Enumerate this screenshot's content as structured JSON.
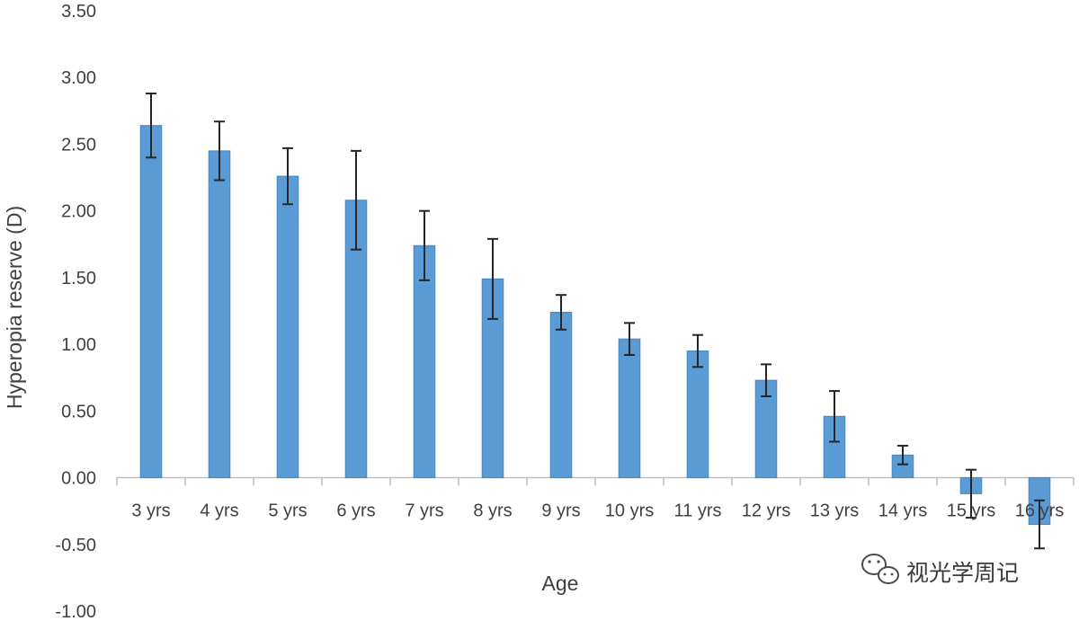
{
  "chart_data": {
    "type": "bar",
    "title": "",
    "xlabel": "Age",
    "ylabel": "Hyperopia reserve (D)",
    "ylim": [
      -1.0,
      3.5
    ],
    "yticks": [
      "3.50",
      "3.00",
      "2.50",
      "2.00",
      "1.50",
      "1.00",
      "0.50",
      "0.00",
      "-0.50",
      "-1.00"
    ],
    "categories": [
      "3 yrs",
      "4 yrs",
      "5 yrs",
      "6 yrs",
      "7 yrs",
      "8 yrs",
      "9 yrs",
      "10 yrs",
      "11 yrs",
      "12 yrs",
      "13 yrs",
      "14 yrs",
      "15 yrs",
      "16 yrs"
    ],
    "values": [
      2.64,
      2.45,
      2.26,
      2.08,
      1.74,
      1.49,
      1.24,
      1.04,
      0.95,
      0.73,
      0.46,
      0.17,
      -0.12,
      -0.35
    ],
    "error": [
      0.24,
      0.22,
      0.21,
      0.37,
      0.26,
      0.3,
      0.13,
      0.12,
      0.12,
      0.12,
      0.19,
      0.07,
      0.18,
      0.18
    ],
    "bar_color": "#5b9bd5",
    "error_color": "#262626",
    "grid": false,
    "legend": "none"
  },
  "watermark": {
    "text": "视光学周记",
    "icon": "wechat-icon"
  }
}
